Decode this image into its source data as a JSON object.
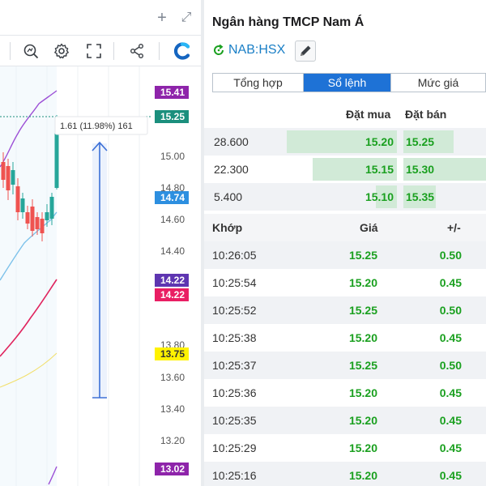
{
  "chart": {
    "title_buttons": {
      "add": "+",
      "expand": "⤢"
    },
    "toolbar_icons": [
      "search-chart-icon",
      "gear-icon",
      "fullscreen-icon",
      "share-icon",
      "logo-icon"
    ],
    "price_labels": [
      "15.41",
      "15.25",
      "15.00",
      "14.80",
      "14.74",
      "14.60",
      "14.40",
      "14.22",
      "14.22",
      "13.80",
      "13.75",
      "13.60",
      "13.40",
      "13.20",
      "13.02"
    ],
    "measure_label": "1.61 (11.98%) 161",
    "colors": {
      "up": "#26a69a",
      "down": "#ef5350",
      "upper_band": "#9c4fd6",
      "lower_band": "#e0245e",
      "ma": "#7cc1ea",
      "ma_long": "#f2df6b",
      "measure": "#3b6fd6",
      "badge_purple": "#8e24aa",
      "badge_teal": "#1b8f7d",
      "badge_blue": "#2d8fe0",
      "badge_indigo": "#5e35b1",
      "badge_red": "#e91e63",
      "badge_yellow": "#fff200"
    }
  },
  "stock": {
    "name": "Ngân hàng TMCP Nam Á",
    "ticker": "NAB:HSX",
    "status_icon": "refresh-green-icon",
    "edit_icon": "pencil-icon"
  },
  "tabs": [
    {
      "label": "Tổng hợp",
      "active": false
    },
    {
      "label": "Sổ lệnh",
      "active": true
    },
    {
      "label": "Mức giá",
      "active": false
    }
  ],
  "orderbook": {
    "headers": {
      "bid": "Đặt mua",
      "ask": "Đặt bán"
    },
    "rows": [
      {
        "volume": "28.600",
        "bid": "15.20",
        "ask": "15.25"
      },
      {
        "volume": "22.300",
        "bid": "15.15",
        "ask": "15.30"
      },
      {
        "volume": "5.400",
        "bid": "15.10",
        "ask": "15.35"
      }
    ]
  },
  "trades": {
    "headers": {
      "time": "Khớp",
      "price": "Giá",
      "change": "+/-"
    },
    "rows": [
      {
        "time": "10:26:05",
        "price": "15.25",
        "change": "0.50"
      },
      {
        "time": "10:25:54",
        "price": "15.20",
        "change": "0.45"
      },
      {
        "time": "10:25:52",
        "price": "15.25",
        "change": "0.50"
      },
      {
        "time": "10:25:38",
        "price": "15.20",
        "change": "0.45"
      },
      {
        "time": "10:25:37",
        "price": "15.25",
        "change": "0.50"
      },
      {
        "time": "10:25:36",
        "price": "15.20",
        "change": "0.45"
      },
      {
        "time": "10:25:35",
        "price": "15.20",
        "change": "0.45"
      },
      {
        "time": "10:25:29",
        "price": "15.20",
        "change": "0.45"
      },
      {
        "time": "10:25:16",
        "price": "15.20",
        "change": "0.45"
      }
    ]
  }
}
